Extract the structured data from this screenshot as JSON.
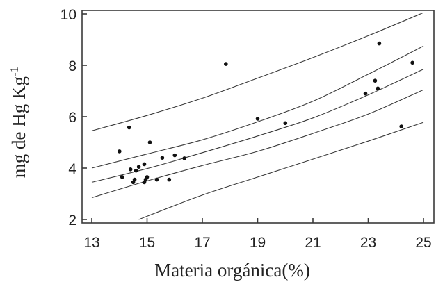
{
  "chart_data": {
    "type": "scatter",
    "xlabel": "Materia orgánica(%)",
    "ylabel_main": "mg de Hg Kg",
    "ylabel_sup": "-1",
    "xlim": [
      13,
      25
    ],
    "ylim": [
      2,
      10
    ],
    "x_ticks": [
      13,
      15,
      17,
      19,
      21,
      23,
      25
    ],
    "y_ticks": [
      2,
      4,
      6,
      8,
      10
    ],
    "grid": false,
    "points": [
      {
        "x": 14.0,
        "y": 4.65
      },
      {
        "x": 14.1,
        "y": 3.65
      },
      {
        "x": 14.35,
        "y": 5.58
      },
      {
        "x": 14.4,
        "y": 3.95
      },
      {
        "x": 14.5,
        "y": 3.45
      },
      {
        "x": 14.55,
        "y": 3.55
      },
      {
        "x": 14.6,
        "y": 3.9
      },
      {
        "x": 14.7,
        "y": 4.05
      },
      {
        "x": 14.9,
        "y": 4.15
      },
      {
        "x": 14.9,
        "y": 3.45
      },
      {
        "x": 14.95,
        "y": 3.55
      },
      {
        "x": 15.0,
        "y": 3.65
      },
      {
        "x": 15.1,
        "y": 5.0
      },
      {
        "x": 15.35,
        "y": 3.55
      },
      {
        "x": 15.55,
        "y": 4.4
      },
      {
        "x": 15.8,
        "y": 3.55
      },
      {
        "x": 16.0,
        "y": 4.5
      },
      {
        "x": 16.35,
        "y": 4.38
      },
      {
        "x": 17.85,
        "y": 8.05
      },
      {
        "x": 19.0,
        "y": 5.92
      },
      {
        "x": 20.0,
        "y": 5.75
      },
      {
        "x": 22.9,
        "y": 6.9
      },
      {
        "x": 23.25,
        "y": 7.4
      },
      {
        "x": 23.35,
        "y": 7.1
      },
      {
        "x": 23.4,
        "y": 8.85
      },
      {
        "x": 24.2,
        "y": 5.62
      },
      {
        "x": 24.6,
        "y": 8.1
      }
    ],
    "bands": [
      {
        "x": [
          13,
          15,
          17,
          19,
          21,
          23,
          25
        ],
        "y": [
          5.45,
          6.05,
          6.72,
          7.5,
          8.3,
          9.15,
          10.05
        ]
      },
      {
        "x": [
          13,
          15,
          17,
          19,
          21,
          23,
          25
        ],
        "y": [
          4.0,
          4.55,
          5.1,
          5.8,
          6.6,
          7.65,
          8.75
        ]
      },
      {
        "x": [
          13,
          15,
          17,
          19,
          21,
          23,
          25
        ],
        "y": [
          3.45,
          3.98,
          4.6,
          5.25,
          5.95,
          6.85,
          7.85
        ]
      },
      {
        "x": [
          13,
          15,
          17,
          19,
          21,
          23,
          25
        ],
        "y": [
          2.85,
          3.5,
          4.1,
          4.65,
          5.35,
          6.1,
          7.05
        ]
      },
      {
        "x": [
          14.7,
          17,
          19,
          21,
          23,
          25
        ],
        "y": [
          2.0,
          2.95,
          3.65,
          4.35,
          5.05,
          5.78
        ]
      }
    ]
  }
}
